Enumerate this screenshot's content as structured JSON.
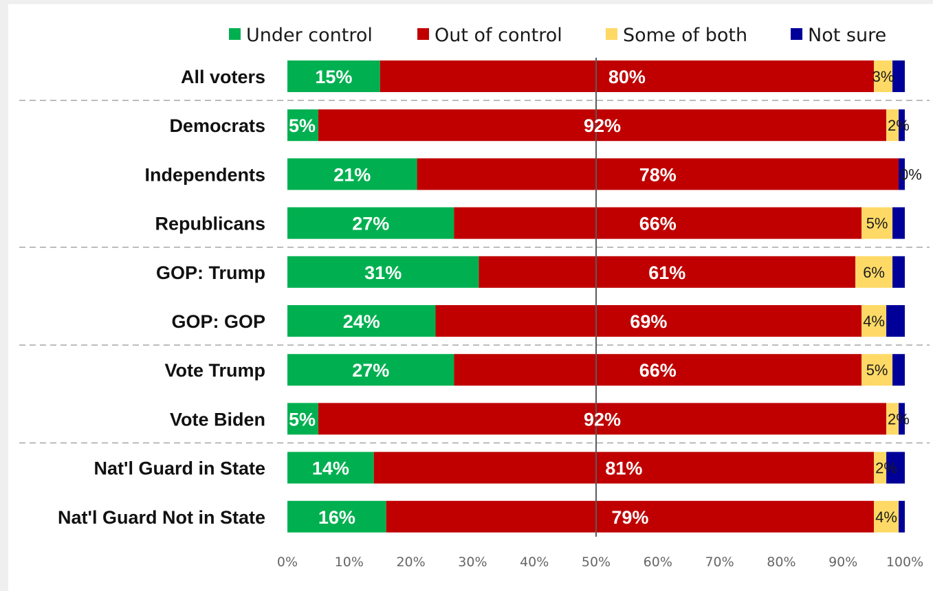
{
  "colors": {
    "under_control": "#00b050",
    "out_of_control": "#c00000",
    "some_of_both": "#ffd966",
    "not_sure": "#000099"
  },
  "chart_data": {
    "type": "bar",
    "orientation": "horizontal",
    "stacked": true,
    "legend_position": "top",
    "categories": [
      "All voters",
      "Democrats",
      "Independents",
      "Republicans",
      "GOP: Trump",
      "GOP: GOP",
      "Vote Trump",
      "Vote Biden",
      "Nat'l Guard in State",
      "Nat'l Guard Not in State"
    ],
    "series": [
      {
        "name": "Under control",
        "color": "#00b050",
        "values": [
          15,
          5,
          21,
          27,
          31,
          24,
          27,
          5,
          14,
          16
        ]
      },
      {
        "name": "Out of control",
        "color": "#c00000",
        "values": [
          80,
          92,
          78,
          66,
          61,
          69,
          66,
          92,
          81,
          79
        ]
      },
      {
        "name": "Some of both",
        "color": "#ffd966",
        "values": [
          3,
          2,
          0,
          5,
          6,
          4,
          5,
          2,
          2,
          4
        ]
      },
      {
        "name": "Not sure",
        "color": "#000099",
        "values": [
          2,
          1,
          1,
          2,
          2,
          3,
          2,
          1,
          3,
          1
        ]
      }
    ],
    "value_labels": [
      [
        "15%",
        "80%",
        "3%",
        ""
      ],
      [
        "5%",
        "92%",
        "2%",
        ""
      ],
      [
        "21%",
        "78%",
        "0%",
        ""
      ],
      [
        "27%",
        "66%",
        "5%",
        ""
      ],
      [
        "31%",
        "61%",
        "6%",
        ""
      ],
      [
        "24%",
        "69%",
        "4%",
        ""
      ],
      [
        "27%",
        "66%",
        "5%",
        ""
      ],
      [
        "5%",
        "92%",
        "2%",
        ""
      ],
      [
        "14%",
        "81%",
        "2%",
        ""
      ],
      [
        "16%",
        "79%",
        "4%",
        ""
      ]
    ],
    "group_separators_after": [
      0,
      3,
      5,
      7
    ],
    "xlim": [
      0,
      100
    ],
    "x_ticks": [
      "0%",
      "10%",
      "20%",
      "30%",
      "40%",
      "50%",
      "60%",
      "70%",
      "80%",
      "90%",
      "100%"
    ],
    "reference_line_x": 50,
    "grid": false,
    "title": "",
    "xlabel": "",
    "ylabel": ""
  }
}
